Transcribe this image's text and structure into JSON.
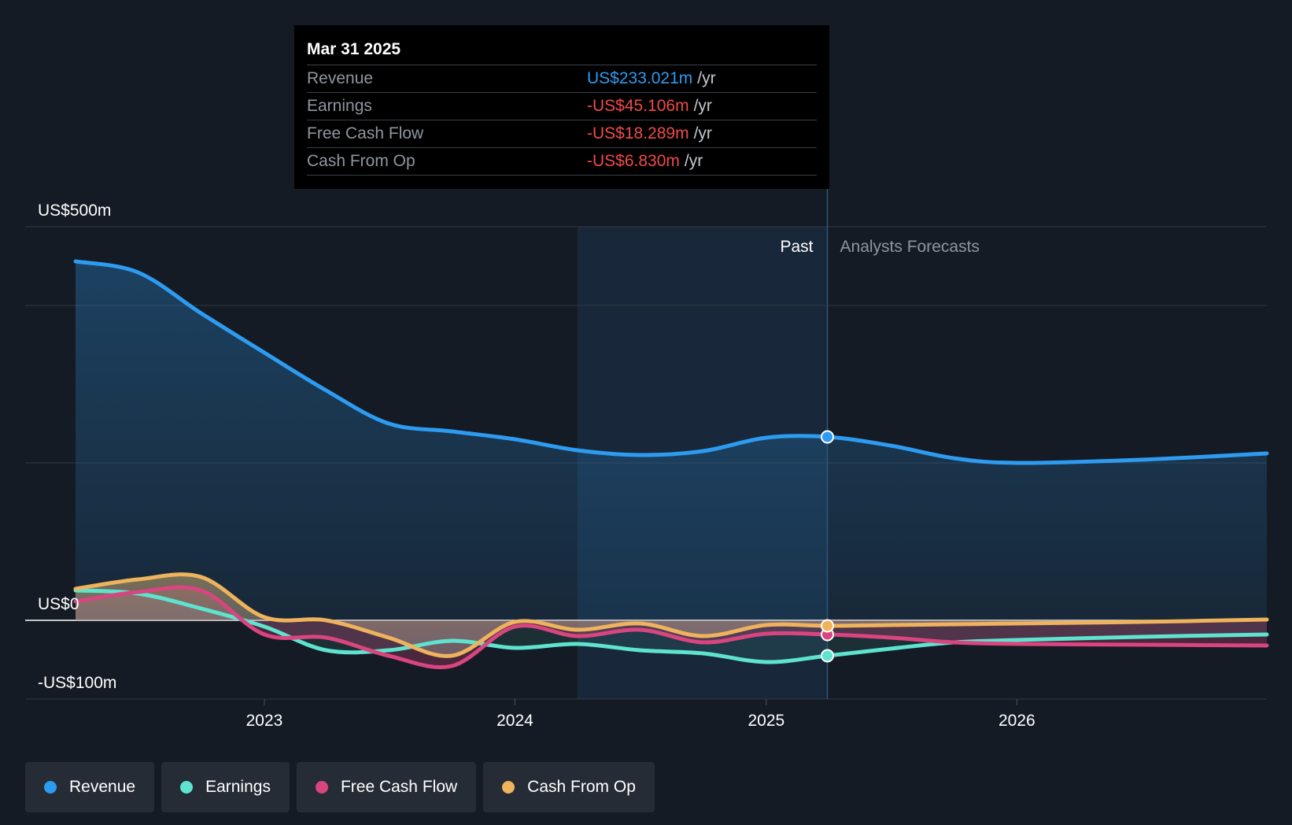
{
  "tooltip": {
    "date": "Mar 31 2025",
    "rows": [
      {
        "label": "Revenue",
        "value": "US$233.021m",
        "unit": "/yr"
      },
      {
        "label": "Earnings",
        "value": "-US$45.106m",
        "unit": "/yr"
      },
      {
        "label": "Free Cash Flow",
        "value": "-US$18.289m",
        "unit": "/yr"
      },
      {
        "label": "Cash From Op",
        "value": "-US$6.830m",
        "unit": "/yr"
      }
    ]
  },
  "colors": {
    "background": "#151b24",
    "revenue": "#2d9bf0",
    "earnings": "#5ee3cf",
    "free_cash_flow": "#d8457f",
    "cash_from_op": "#eeb35c"
  },
  "legend": [
    {
      "label": "Revenue",
      "color": "#2d9bf0"
    },
    {
      "label": "Earnings",
      "color": "#5ee3cf"
    },
    {
      "label": "Free Cash Flow",
      "color": "#d8457f"
    },
    {
      "label": "Cash From Op",
      "color": "#eeb35c"
    }
  ],
  "chart_data": {
    "type": "area",
    "title": "",
    "xlabel": "",
    "ylabel": "",
    "y_unit": "US$m",
    "ylim": [
      -100,
      500
    ],
    "x_range": [
      "2022-04-01",
      "2026-12-31"
    ],
    "y_ticks": [
      {
        "value": 500,
        "label": "US$500m"
      },
      {
        "value": 0,
        "label": "US$0"
      },
      {
        "value": -100,
        "label": "-US$100m"
      }
    ],
    "gridlines": [
      500,
      400,
      200,
      0,
      -100
    ],
    "x_ticks": [
      {
        "date": "2023-01-01",
        "label": "2023"
      },
      {
        "date": "2024-01-01",
        "label": "2024"
      },
      {
        "date": "2025-01-01",
        "label": "2025"
      },
      {
        "date": "2026-01-01",
        "label": "2026"
      }
    ],
    "past_label": "Past",
    "forecast_label": "Analysts Forecasts",
    "highlight_start": "2024-04-01",
    "divider_date": "2025-03-31",
    "legend_position": "bottom-left",
    "series": [
      {
        "name": "Revenue",
        "color": "#2d9bf0",
        "points": [
          [
            "2022-04-01",
            456
          ],
          [
            "2022-07-01",
            442
          ],
          [
            "2022-10-01",
            390
          ],
          [
            "2023-01-01",
            340
          ],
          [
            "2023-04-01",
            292
          ],
          [
            "2023-07-01",
            250
          ],
          [
            "2023-10-01",
            240
          ],
          [
            "2024-01-01",
            230
          ],
          [
            "2024-04-01",
            216
          ],
          [
            "2024-07-01",
            210
          ],
          [
            "2024-10-01",
            215
          ],
          [
            "2025-01-01",
            232
          ],
          [
            "2025-03-31",
            233
          ],
          [
            "2025-07-01",
            222
          ],
          [
            "2025-10-01",
            206
          ],
          [
            "2026-01-01",
            200
          ],
          [
            "2026-07-01",
            204
          ],
          [
            "2026-12-31",
            212
          ]
        ]
      },
      {
        "name": "Earnings",
        "color": "#5ee3cf",
        "points": [
          [
            "2022-04-01",
            38
          ],
          [
            "2022-07-01",
            34
          ],
          [
            "2022-10-01",
            15
          ],
          [
            "2023-01-01",
            -8
          ],
          [
            "2023-04-01",
            -38
          ],
          [
            "2023-07-01",
            -38
          ],
          [
            "2023-10-01",
            -26
          ],
          [
            "2024-01-01",
            -35
          ],
          [
            "2024-04-01",
            -30
          ],
          [
            "2024-07-01",
            -38
          ],
          [
            "2024-10-01",
            -42
          ],
          [
            "2025-01-01",
            -53
          ],
          [
            "2025-03-31",
            -45
          ],
          [
            "2025-07-01",
            -36
          ],
          [
            "2025-10-01",
            -28
          ],
          [
            "2026-01-01",
            -25
          ],
          [
            "2026-07-01",
            -21
          ],
          [
            "2026-12-31",
            -18
          ]
        ]
      },
      {
        "name": "Free Cash Flow",
        "color": "#d8457f",
        "points": [
          [
            "2022-04-01",
            24
          ],
          [
            "2022-07-01",
            36
          ],
          [
            "2022-10-01",
            38
          ],
          [
            "2023-01-01",
            -18
          ],
          [
            "2023-04-01",
            -22
          ],
          [
            "2023-07-01",
            -45
          ],
          [
            "2023-10-01",
            -58
          ],
          [
            "2024-01-01",
            -8
          ],
          [
            "2024-04-01",
            -20
          ],
          [
            "2024-07-01",
            -12
          ],
          [
            "2024-10-01",
            -28
          ],
          [
            "2025-01-01",
            -17
          ],
          [
            "2025-03-31",
            -18
          ],
          [
            "2025-07-01",
            -22
          ],
          [
            "2025-10-01",
            -28
          ],
          [
            "2026-01-01",
            -30
          ],
          [
            "2026-07-01",
            -31
          ],
          [
            "2026-12-31",
            -32
          ]
        ]
      },
      {
        "name": "Cash From Op",
        "color": "#eeb35c",
        "points": [
          [
            "2022-04-01",
            40
          ],
          [
            "2022-07-01",
            52
          ],
          [
            "2022-10-01",
            55
          ],
          [
            "2023-01-01",
            4
          ],
          [
            "2023-04-01",
            0
          ],
          [
            "2023-07-01",
            -22
          ],
          [
            "2023-10-01",
            -45
          ],
          [
            "2024-01-01",
            -2
          ],
          [
            "2024-04-01",
            -12
          ],
          [
            "2024-07-01",
            -4
          ],
          [
            "2024-10-01",
            -20
          ],
          [
            "2025-01-01",
            -6
          ],
          [
            "2025-03-31",
            -7
          ],
          [
            "2025-07-01",
            -6
          ],
          [
            "2025-10-01",
            -5
          ],
          [
            "2026-01-01",
            -4
          ],
          [
            "2026-07-01",
            -2
          ],
          [
            "2026-12-31",
            1
          ]
        ]
      }
    ]
  }
}
